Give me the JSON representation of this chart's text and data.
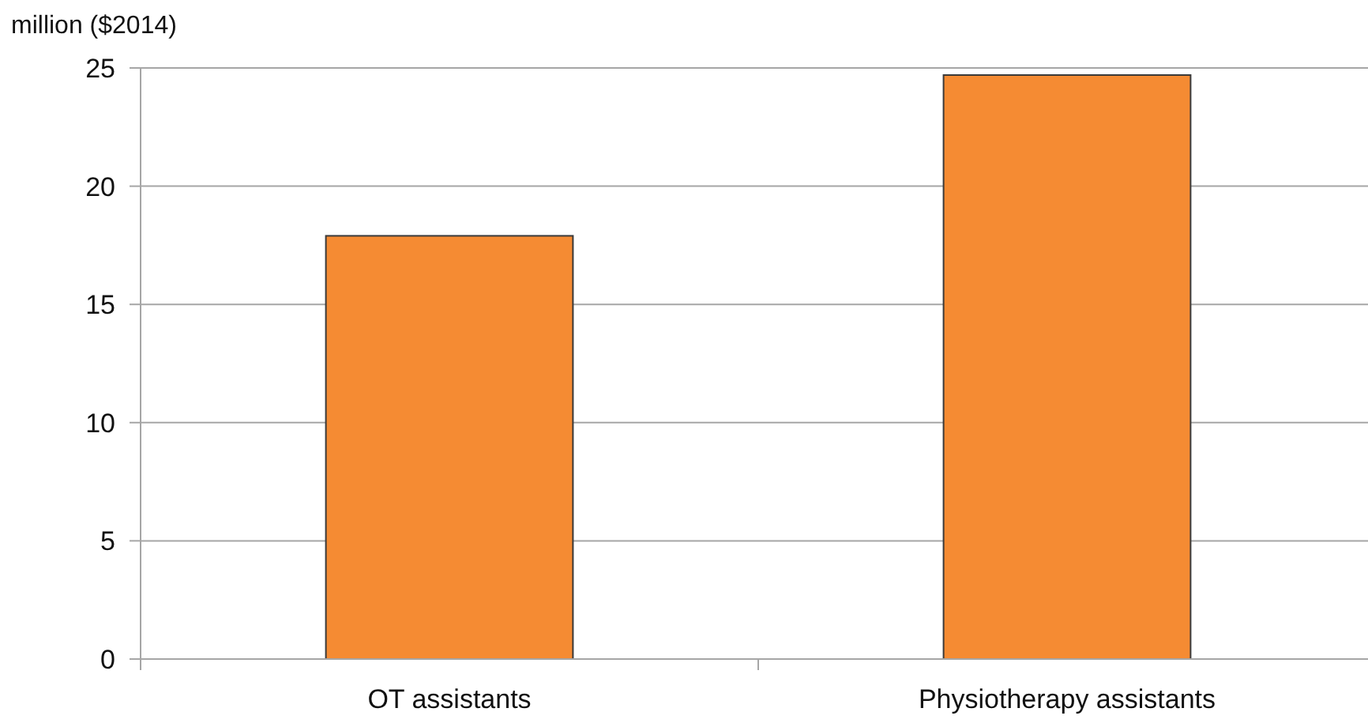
{
  "chart_data": {
    "type": "bar",
    "ylabel": "million ($2014)",
    "categories": [
      "OT assistants",
      "Physiotherapy assistants"
    ],
    "series": [
      {
        "color": "#f58b33",
        "values": [
          17.9,
          24.7
        ]
      }
    ],
    "ylim": [
      0,
      25
    ],
    "yticks": [
      0,
      5,
      10,
      15,
      20,
      25
    ],
    "grid": "y"
  }
}
